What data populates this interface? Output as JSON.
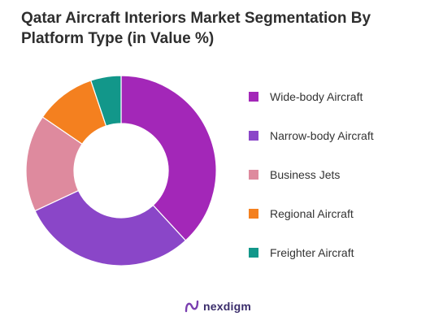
{
  "title": {
    "line1": "Qatar Aircraft Interiors Market Segmentation By",
    "line2": "Platform Type (in Value %)"
  },
  "brand": {
    "name": "nexdigm",
    "icon": "nexdigm-logo-icon",
    "color": "#3a2d6b"
  },
  "chart_data": {
    "type": "pie",
    "variant": "donut",
    "title": "Qatar Aircraft Interiors Market Segmentation By Platform Type (in Value %)",
    "legend_position": "right",
    "series": [
      {
        "name": "Wide-body Aircraft",
        "value": 37,
        "color": "#a327b8"
      },
      {
        "name": "Narrow-body Aircraft",
        "value": 29,
        "color": "#8a46c8"
      },
      {
        "name": "Business Jets",
        "value": 16,
        "color": "#de8a9e"
      },
      {
        "name": "Regional Aircraft",
        "value": 10,
        "color": "#f4801f"
      },
      {
        "name": "Freighter Aircraft",
        "value": 5,
        "color": "#12978a"
      }
    ]
  }
}
